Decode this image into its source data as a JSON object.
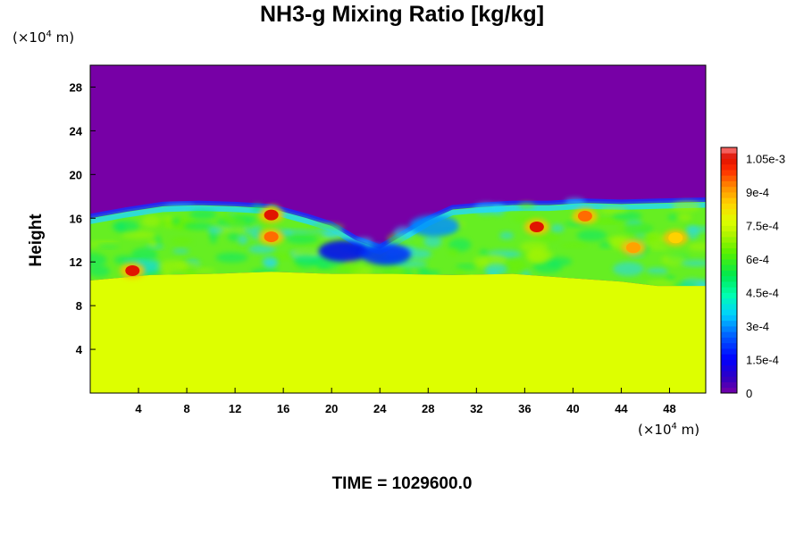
{
  "title": "NH3-g Mixing Ratio [kg/kg]",
  "y_unit": {
    "prefix": "(×10",
    "exp": "4",
    "suffix": " m)"
  },
  "x_unit": {
    "prefix": "(×10",
    "exp": "4",
    "suffix": " m)"
  },
  "ylabel": "Height",
  "footer": "TIME = 1029600.0",
  "colors": {
    "background_top": "#7700a6",
    "background_bottom": "#ddff00",
    "turbulence": [
      "#22d8ff",
      "#00e870",
      "#6cf000",
      "#a8f400",
      "#ffbf00",
      "#ff3300",
      "#d51500"
    ]
  },
  "chart_data": {
    "type": "heatmap",
    "title": "NH3-g Mixing Ratio [kg/kg]",
    "xlabel": "",
    "ylabel": "Height",
    "xlim": [
      0,
      51
    ],
    "ylim": [
      0,
      30
    ],
    "x_ticks": [
      "4",
      "8",
      "12",
      "16",
      "20",
      "24",
      "28",
      "32",
      "36",
      "40",
      "44",
      "48"
    ],
    "y_ticks": [
      "4",
      "8",
      "12",
      "16",
      "20",
      "24",
      "28"
    ],
    "colorbar": {
      "min": 0,
      "max": 0.0011,
      "tick_labels": [
        "0",
        "1.5e-4",
        "3e-4",
        "4.5e-4",
        "6e-4",
        "7.5e-4",
        "9e-4",
        "1.05e-3"
      ],
      "tick_values": [
        0,
        0.00015,
        0.0003,
        0.00045,
        0.0006,
        0.00075,
        0.0009,
        0.00105
      ]
    },
    "layers": [
      {
        "region": "upper atmosphere (above ~17)",
        "value": 0
      },
      {
        "region": "lower atmosphere (below ~10.5)",
        "value": 0.00075
      },
      {
        "region": "mixing layer (~10.5 to ~17.5)",
        "value_range": [
          0.0002,
          0.00105
        ]
      }
    ],
    "interface_height": [
      [
        0,
        16.2
      ],
      [
        3,
        16.8
      ],
      [
        6,
        17.3
      ],
      [
        9,
        17.4
      ],
      [
        12,
        17.3
      ],
      [
        15,
        17.1
      ],
      [
        18,
        16.2
      ],
      [
        20,
        15.5
      ],
      [
        22,
        14.2
      ],
      [
        24,
        13.4
      ],
      [
        26,
        14.7
      ],
      [
        28,
        16.0
      ],
      [
        30,
        17.0
      ],
      [
        32,
        17.2
      ],
      [
        35,
        17.4
      ],
      [
        38,
        17.4
      ],
      [
        41,
        17.6
      ],
      [
        44,
        17.5
      ],
      [
        47,
        17.6
      ],
      [
        51,
        17.7
      ]
    ],
    "mixing_bottom": [
      [
        0,
        10.3
      ],
      [
        5,
        10.8
      ],
      [
        10,
        10.9
      ],
      [
        15,
        11.1
      ],
      [
        20,
        10.9
      ],
      [
        25,
        10.9
      ],
      [
        30,
        10.8
      ],
      [
        35,
        10.9
      ],
      [
        40,
        10.5
      ],
      [
        44,
        10.2
      ],
      [
        47,
        9.8
      ],
      [
        51,
        9.8
      ]
    ],
    "high_value_patches": [
      {
        "x": 3.5,
        "y": 11.2,
        "value": 0.00105
      },
      {
        "x": 15,
        "y": 16.3,
        "value": 0.00105
      },
      {
        "x": 15,
        "y": 14.3,
        "value": 0.00095
      },
      {
        "x": 37,
        "y": 15.2,
        "value": 0.00105
      },
      {
        "x": 41,
        "y": 16.2,
        "value": 0.00095
      },
      {
        "x": 45,
        "y": 13.3,
        "value": 0.0009
      },
      {
        "x": 48.5,
        "y": 14.2,
        "value": 0.00085
      }
    ],
    "low_value_patches": [
      {
        "x": 21,
        "y": 13.0,
        "value": 0.00015
      },
      {
        "x": 24.5,
        "y": 12.7,
        "value": 0.0002
      },
      {
        "x": 28.5,
        "y": 15.3,
        "value": 0.0003
      }
    ]
  }
}
